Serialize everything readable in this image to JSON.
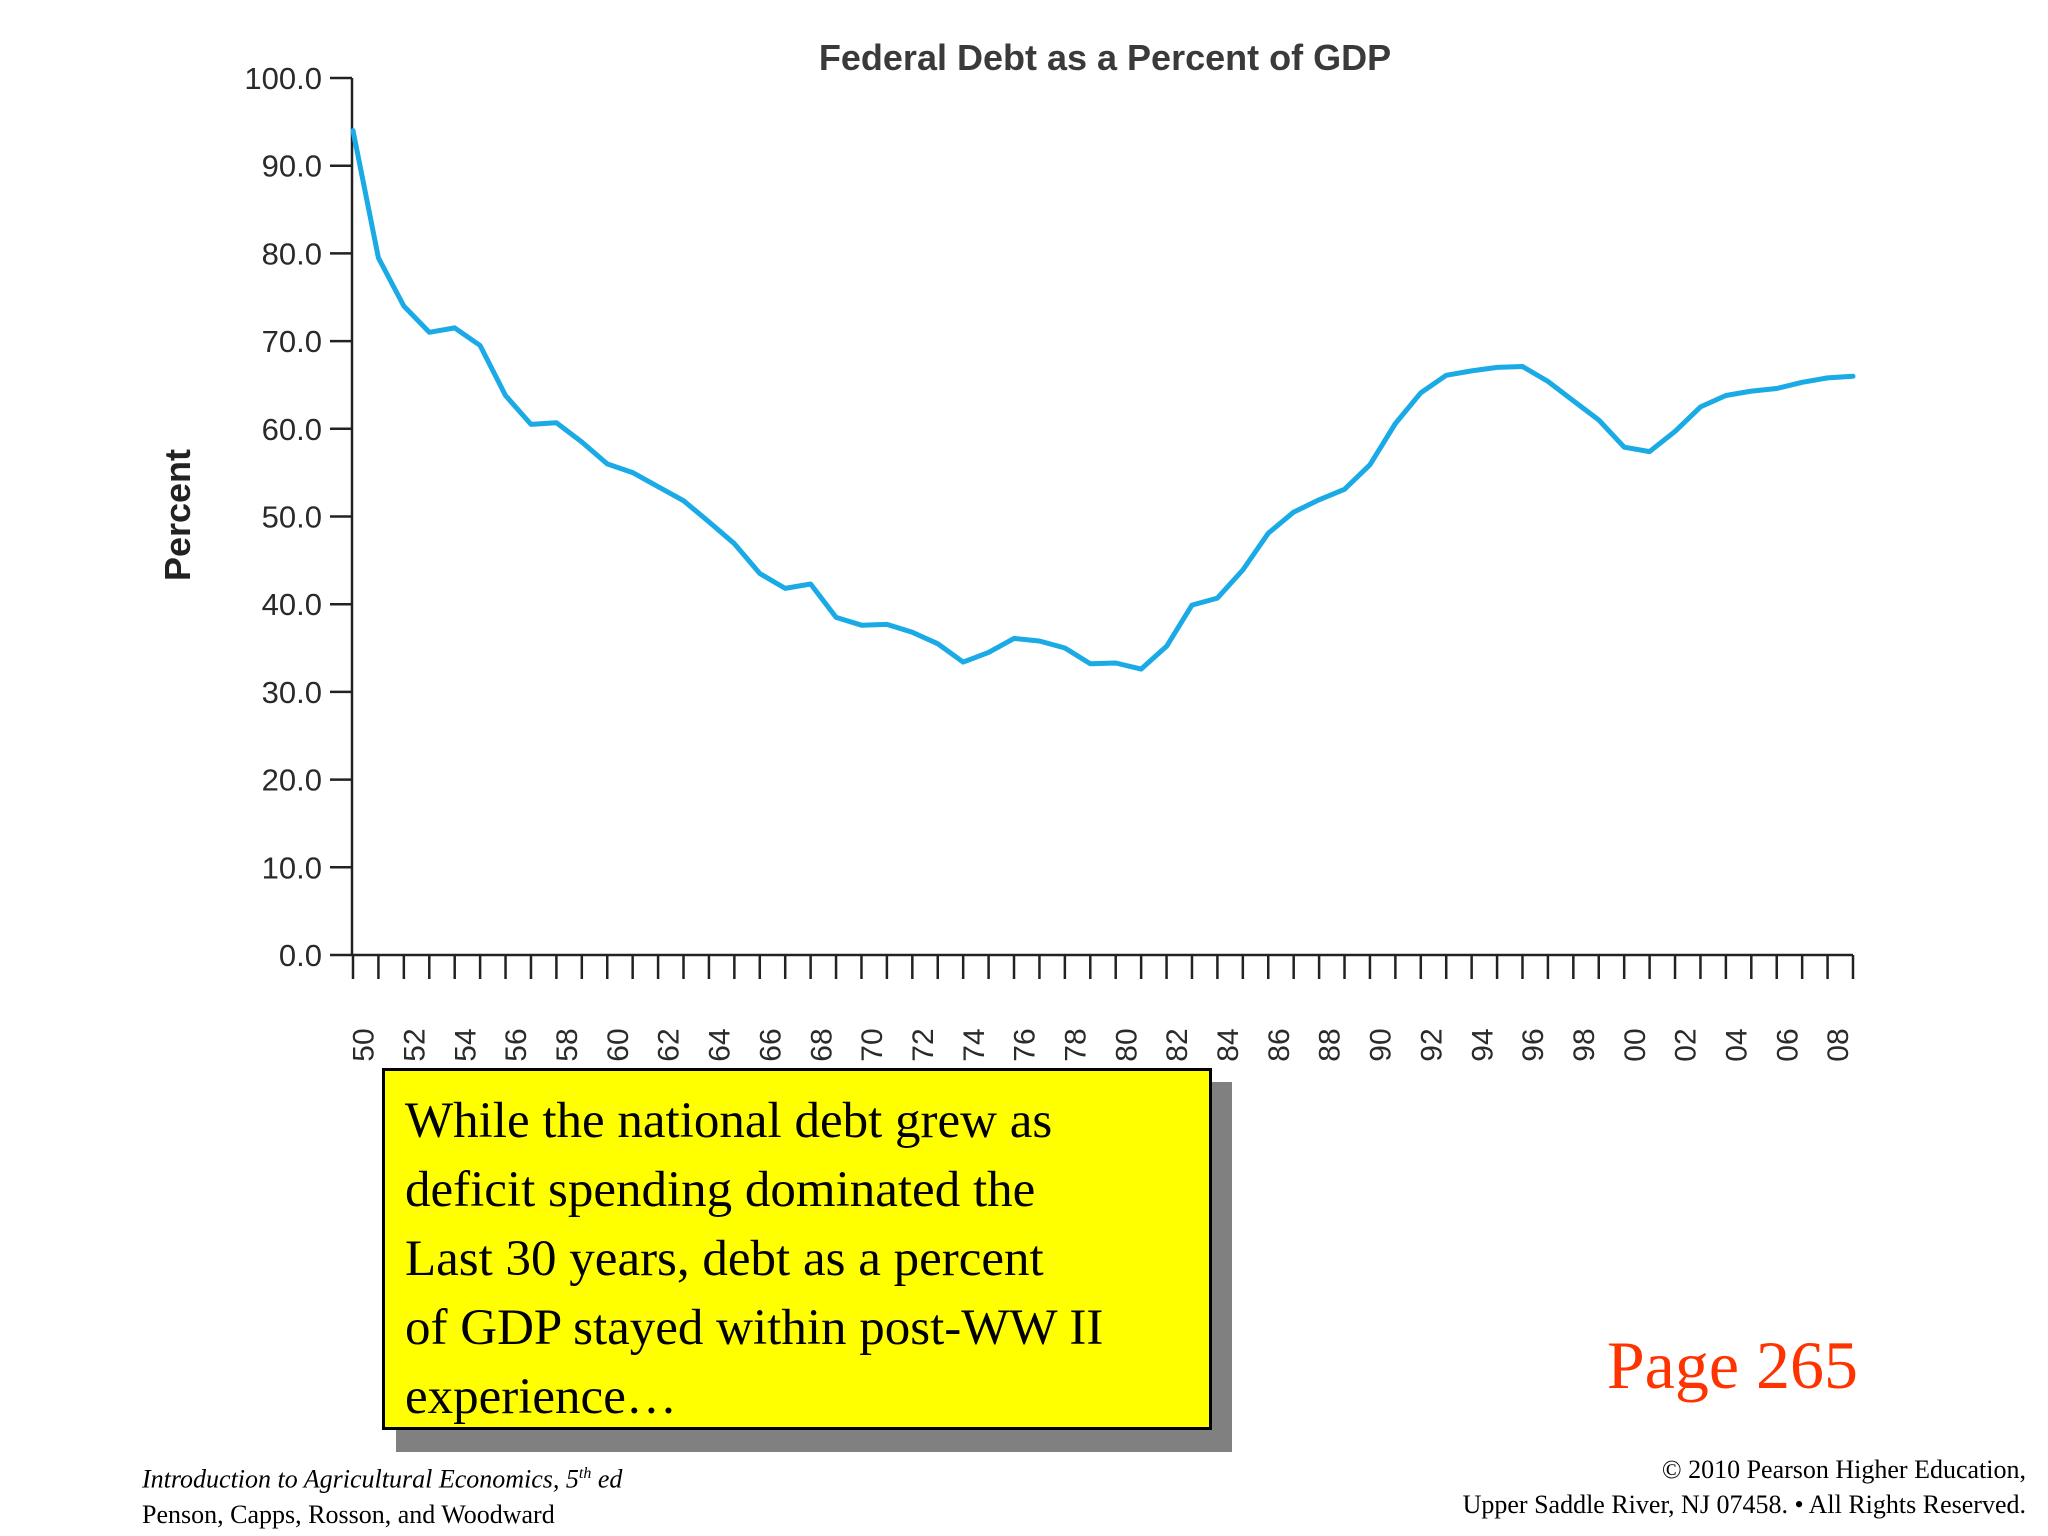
{
  "chart_data": {
    "type": "line",
    "title": "Federal Debt as a Percent of GDP",
    "ylabel": "Percent",
    "xlabel": "",
    "ylim": [
      0,
      100
    ],
    "y_ticks": [
      "0.0",
      "10.0",
      "20.0",
      "30.0",
      "40.0",
      "50.0",
      "60.0",
      "70.0",
      "80.0",
      "90.0",
      "100.0"
    ],
    "x_tick_labels": [
      "50",
      "52",
      "54",
      "56",
      "58",
      "60",
      "62",
      "64",
      "66",
      "68",
      "70",
      "72",
      "74",
      "76",
      "78",
      "80",
      "82",
      "84",
      "86",
      "88",
      "90",
      "92",
      "94",
      "96",
      "98",
      "00",
      "02",
      "04",
      "06",
      "08"
    ],
    "x_years": [
      1950,
      2009
    ],
    "grid": false,
    "series": [
      {
        "color": "#1aaae6",
        "x": [
          1950,
          1951,
          1952,
          1953,
          1954,
          1955,
          1956,
          1957,
          1958,
          1959,
          1960,
          1961,
          1962,
          1963,
          1964,
          1965,
          1966,
          1967,
          1968,
          1969,
          1970,
          1971,
          1972,
          1973,
          1974,
          1975,
          1976,
          1977,
          1978,
          1979,
          1980,
          1981,
          1982,
          1983,
          1984,
          1985,
          1986,
          1987,
          1988,
          1989,
          1990,
          1991,
          1992,
          1993,
          1994,
          1995,
          1996,
          1997,
          1998,
          1999,
          2000,
          2001,
          2002,
          2003,
          2004,
          2005,
          2006,
          2007,
          2008,
          2009
        ],
        "values": [
          94.0,
          79.5,
          74.0,
          71.0,
          71.5,
          69.5,
          63.8,
          60.5,
          60.7,
          58.5,
          56.0,
          55.0,
          53.4,
          51.8,
          49.4,
          46.9,
          43.5,
          41.8,
          42.3,
          38.5,
          37.6,
          37.7,
          36.8,
          35.5,
          33.4,
          34.5,
          36.1,
          35.8,
          35.0,
          33.2,
          33.3,
          32.6,
          35.2,
          39.9,
          40.7,
          43.9,
          48.1,
          50.5,
          51.9,
          53.1,
          55.9,
          60.6,
          64.1,
          66.1,
          66.6,
          67.0,
          67.1,
          65.4,
          63.2,
          61.0,
          57.9,
          57.4,
          59.7,
          62.5,
          63.8,
          64.3,
          64.6,
          65.3,
          65.8,
          66.0
        ]
      }
    ]
  },
  "callout": {
    "lines": [
      "While the national debt grew as",
      "deficit spending dominated the",
      "Last 30 years, debt as a percent",
      "of GDP stayed within post-WW II",
      "experience…"
    ]
  },
  "page_ref": "Page 265",
  "footer": {
    "left_line1_prefix": "Introduction to Agricultural Economics, 5",
    "left_line1_sup": "th",
    "left_line1_suffix": " ed",
    "left_line2": "Penson, Capps, Rosson, and Woodward",
    "right_line1": "© 2010 Pearson Higher Education,",
    "right_line2": "Upper Saddle River, NJ 07458. • All Rights Reserved."
  },
  "colors": {
    "line": "#1aaae6",
    "callout_bg": "#ffff00",
    "page_ref": "#ff3300"
  }
}
